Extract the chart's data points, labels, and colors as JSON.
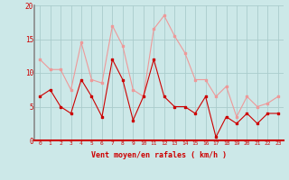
{
  "x": [
    0,
    1,
    2,
    3,
    4,
    5,
    6,
    7,
    8,
    9,
    10,
    11,
    12,
    13,
    14,
    15,
    16,
    17,
    18,
    19,
    20,
    21,
    22,
    23
  ],
  "vent_moyen": [
    6.5,
    7.5,
    5.0,
    4.0,
    9.0,
    6.5,
    3.5,
    12.0,
    9.0,
    3.0,
    6.5,
    12.0,
    6.5,
    5.0,
    5.0,
    4.0,
    6.5,
    0.5,
    3.5,
    2.5,
    4.0,
    2.5,
    4.0,
    4.0
  ],
  "rafales": [
    12.0,
    10.5,
    10.5,
    7.5,
    14.5,
    9.0,
    8.5,
    17.0,
    14.0,
    7.5,
    6.5,
    16.5,
    18.5,
    15.5,
    13.0,
    9.0,
    9.0,
    6.5,
    8.0,
    3.5,
    6.5,
    5.0,
    5.5,
    6.5
  ],
  "xlabel": "Vent moyen/en rafales ( km/h )",
  "bg_color": "#cce8e8",
  "grid_color": "#aacccc",
  "line_color_moyen": "#cc0000",
  "line_color_rafales": "#ee9999",
  "ylim": [
    0,
    20
  ],
  "yticks": [
    0,
    5,
    10,
    15,
    20
  ],
  "xticks": [
    0,
    1,
    2,
    3,
    4,
    5,
    6,
    7,
    8,
    9,
    10,
    11,
    12,
    13,
    14,
    15,
    16,
    17,
    18,
    19,
    20,
    21,
    22,
    23
  ]
}
